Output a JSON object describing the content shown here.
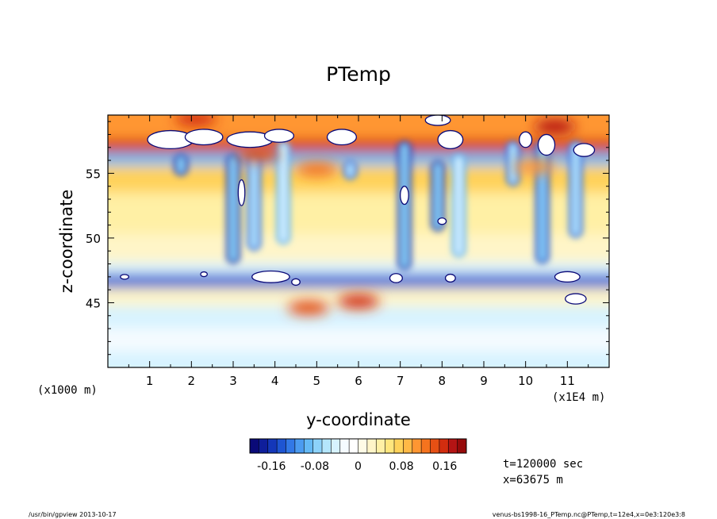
{
  "chart_data": {
    "type": "heatmap",
    "title": "PTemp",
    "xlabel": "y-coordinate",
    "ylabel": "z-coordinate",
    "x_offset_label": "(x1000 m)",
    "x_scale_label": "(x1E4 m)",
    "x_ticks": [
      1,
      2,
      3,
      4,
      5,
      6,
      7,
      8,
      9,
      10,
      11
    ],
    "y_ticks": [
      45,
      50,
      55
    ],
    "xlim": [
      0,
      12
    ],
    "ylim": [
      40,
      59.5
    ],
    "colorbar": {
      "range": [
        -0.2,
        0.2
      ],
      "ticks": [
        -0.16,
        -0.08,
        0,
        0.08,
        0.16
      ],
      "tick_labels": [
        "-0.16",
        "-0.08",
        "0",
        "0.08",
        "0.16"
      ],
      "colors": [
        "#0a0a78",
        "#0f1e9b",
        "#1437b9",
        "#1e55d2",
        "#3278e6",
        "#4b9bf0",
        "#64b9f5",
        "#8cd2fa",
        "#b4e6fc",
        "#d7f3ff",
        "#f5fbff",
        "#ffffff",
        "#fffbe6",
        "#fff5c8",
        "#fff0a5",
        "#ffe67d",
        "#ffd25a",
        "#ffb946",
        "#ff9632",
        "#f5731e",
        "#e65014",
        "#d22d0f",
        "#b41414",
        "#960a0a"
      ]
    },
    "bands": [
      {
        "z": 58.2,
        "value": 0.1
      },
      {
        "z": 57.0,
        "value": 0.16
      },
      {
        "z": 56.2,
        "value": -0.1
      },
      {
        "z": 55.0,
        "value": 0.08
      },
      {
        "z": 52.0,
        "value": 0.04
      },
      {
        "z": 48.6,
        "value": 0.02
      },
      {
        "z": 47.6,
        "value": -0.04
      },
      {
        "z": 46.8,
        "value": -0.14
      },
      {
        "z": 45.5,
        "value": 0.03
      },
      {
        "z": 44.0,
        "value": -0.05
      },
      {
        "z": 42.0,
        "value": -0.02
      },
      {
        "z": 40.5,
        "value": -0.04
      }
    ],
    "plumes": [
      {
        "y": 1.75,
        "z_top": 56.5,
        "z_bottom": 54.8,
        "value": -0.16
      },
      {
        "y": 3.0,
        "z_top": 56.5,
        "z_bottom": 48.0,
        "value": -0.16
      },
      {
        "y": 3.5,
        "z_top": 56.5,
        "z_bottom": 49.0,
        "value": -0.12
      },
      {
        "y": 4.2,
        "z_top": 57.5,
        "z_bottom": 49.5,
        "value": -0.1
      },
      {
        "y": 5.8,
        "z_top": 56.0,
        "z_bottom": 54.5,
        "value": -0.12
      },
      {
        "y": 7.1,
        "z_top": 57.5,
        "z_bottom": 47.5,
        "value": -0.16
      },
      {
        "y": 7.9,
        "z_top": 56.0,
        "z_bottom": 50.5,
        "value": -0.16
      },
      {
        "y": 8.4,
        "z_top": 56.5,
        "z_bottom": 48.5,
        "value": -0.1
      },
      {
        "y": 9.7,
        "z_top": 57.5,
        "z_bottom": 54.0,
        "value": -0.12
      },
      {
        "y": 10.4,
        "z_top": 57.5,
        "z_bottom": 48.0,
        "value": -0.14
      },
      {
        "y": 11.2,
        "z_top": 57.5,
        "z_bottom": 50.0,
        "value": -0.12
      }
    ],
    "hotspots": [
      {
        "y": 2.1,
        "z": 59.2,
        "value": 0.16
      },
      {
        "y": 5.0,
        "z": 55.3,
        "value": 0.12
      },
      {
        "y": 6.0,
        "z": 45.1,
        "value": 0.16
      },
      {
        "y": 10.2,
        "z": 55.5,
        "value": 0.1
      },
      {
        "y": 10.7,
        "z": 58.6,
        "value": 0.18
      },
      {
        "y": 3.6,
        "z": 56.5,
        "value": 0.14
      },
      {
        "y": 4.8,
        "z": 44.6,
        "value": 0.14
      }
    ],
    "saturated_regions": [
      {
        "y": 1.5,
        "z": 57.6,
        "dy": 0.55,
        "dz": 0.7
      },
      {
        "y": 2.3,
        "z": 57.8,
        "dy": 0.45,
        "dz": 0.6
      },
      {
        "y": 3.4,
        "z": 57.6,
        "dy": 0.55,
        "dz": 0.6
      },
      {
        "y": 4.1,
        "z": 57.9,
        "dy": 0.35,
        "dz": 0.5
      },
      {
        "y": 5.6,
        "z": 57.8,
        "dy": 0.35,
        "dz": 0.6
      },
      {
        "y": 8.2,
        "z": 57.6,
        "dy": 0.3,
        "dz": 0.7
      },
      {
        "y": 7.9,
        "z": 59.1,
        "dy": 0.3,
        "dz": 0.4
      },
      {
        "y": 10.0,
        "z": 57.6,
        "dy": 0.15,
        "dz": 0.6
      },
      {
        "y": 10.5,
        "z": 57.2,
        "dy": 0.2,
        "dz": 0.8
      },
      {
        "y": 11.4,
        "z": 56.8,
        "dy": 0.25,
        "dz": 0.5
      },
      {
        "y": 3.2,
        "z": 53.5,
        "dy": 0.08,
        "dz": 1.0
      },
      {
        "y": 7.1,
        "z": 53.3,
        "dy": 0.1,
        "dz": 0.7
      },
      {
        "y": 8.0,
        "z": 51.3,
        "dy": 0.1,
        "dz": 0.25
      },
      {
        "y": 3.9,
        "z": 47.0,
        "dy": 0.45,
        "dz": 0.45
      },
      {
        "y": 11.0,
        "z": 47.0,
        "dy": 0.3,
        "dz": 0.4
      },
      {
        "y": 6.9,
        "z": 46.9,
        "dy": 0.15,
        "dz": 0.35
      },
      {
        "y": 8.2,
        "z": 46.9,
        "dy": 0.12,
        "dz": 0.3
      },
      {
        "y": 0.4,
        "z": 47.0,
        "dy": 0.1,
        "dz": 0.15
      },
      {
        "y": 2.3,
        "z": 47.2,
        "dy": 0.08,
        "dz": 0.15
      },
      {
        "y": 11.2,
        "z": 45.3,
        "dy": 0.25,
        "dz": 0.4
      },
      {
        "y": 4.5,
        "z": 46.6,
        "dy": 0.1,
        "dz": 0.25
      }
    ],
    "annotations": [
      "t=120000 sec",
      "x=63675 m"
    ]
  },
  "footer": {
    "left": "/usr/bin/gpview  2013-10-17",
    "right": "venus-bs1998-16_PTemp.nc@PTemp,t=12e4,x=0e3:120e3:8"
  }
}
